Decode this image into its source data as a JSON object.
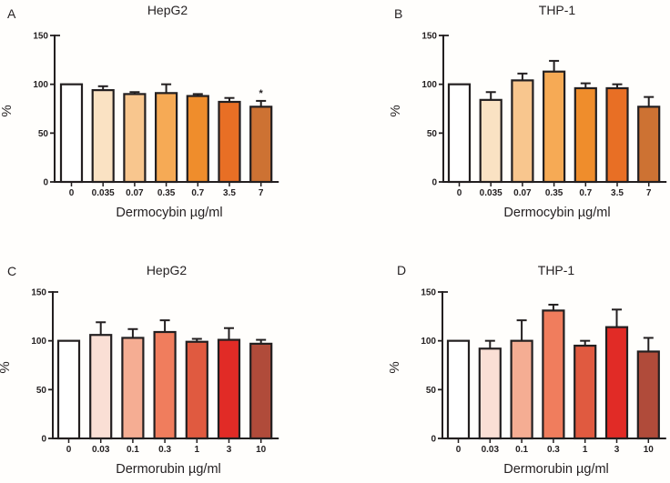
{
  "colors": {
    "axis": "#231F20",
    "text": "#231F20",
    "background": "#FFFFFF"
  },
  "chart_data": [
    {
      "panel": "A",
      "type": "bar",
      "title": "HepG2",
      "xlabel": "Dermocybin µg/ml",
      "ylabel": "%",
      "ylim": [
        0,
        150
      ],
      "yticks": [
        0,
        50,
        100,
        150
      ],
      "grid": false,
      "legend": null,
      "categories": [
        "0",
        "0.035",
        "0.07",
        "0.35",
        "0.7",
        "3.5",
        "7"
      ],
      "values": [
        100,
        94,
        90,
        91,
        88,
        82,
        77
      ],
      "errors": [
        0,
        4,
        2,
        9,
        2,
        4,
        6
      ],
      "significance": [
        "",
        "",
        "",
        "",
        "",
        "",
        "*"
      ],
      "bar_colors": [
        "#FFFFFF",
        "#FAE2C3",
        "#F8C68E",
        "#F6AA55",
        "#EF8D2C",
        "#E86F25",
        "#CD7233"
      ]
    },
    {
      "panel": "B",
      "type": "bar",
      "title": "THP-1",
      "xlabel": "Dermocybin µg/ml",
      "ylabel": "%",
      "ylim": [
        0,
        150
      ],
      "yticks": [
        0,
        50,
        100,
        150
      ],
      "grid": false,
      "legend": null,
      "categories": [
        "0",
        "0.035",
        "0.07",
        "0.35",
        "0.7",
        "3.5",
        "7"
      ],
      "values": [
        100,
        84,
        104,
        113,
        96,
        96,
        77
      ],
      "errors": [
        0,
        8,
        7,
        11,
        5,
        4,
        10
      ],
      "significance": [
        "",
        "",
        "",
        "",
        "",
        "",
        ""
      ],
      "bar_colors": [
        "#FFFFFF",
        "#FAE2C3",
        "#F8C68E",
        "#F6AA55",
        "#EF8D2C",
        "#E86F25",
        "#CD7233"
      ]
    },
    {
      "panel": "C",
      "type": "bar",
      "title": "HepG2",
      "xlabel": "Dermorubin µg/ml",
      "ylabel": "%",
      "ylim": [
        0,
        150
      ],
      "yticks": [
        0,
        50,
        100,
        150
      ],
      "grid": false,
      "legend": null,
      "categories": [
        "0",
        "0.03",
        "0.1",
        "0.3",
        "1",
        "3",
        "10"
      ],
      "values": [
        100,
        106,
        103,
        109,
        99,
        101,
        97
      ],
      "errors": [
        0,
        13,
        9,
        12,
        3,
        12,
        4
      ],
      "significance": [
        "",
        "",
        "",
        "",
        "",
        "",
        ""
      ],
      "bar_colors": [
        "#FFFFFF",
        "#FADFD5",
        "#F5AD93",
        "#F07D5D",
        "#E05A40",
        "#E12B26",
        "#B04B3A"
      ]
    },
    {
      "panel": "D",
      "type": "bar",
      "title": "THP-1",
      "xlabel": "Dermorubin µg/ml",
      "ylabel": "%",
      "ylim": [
        0,
        150
      ],
      "yticks": [
        0,
        50,
        100,
        150
      ],
      "grid": false,
      "legend": null,
      "categories": [
        "0",
        "0.03",
        "0.1",
        "0.3",
        "1",
        "3",
        "10"
      ],
      "values": [
        100,
        92,
        100,
        131,
        95,
        114,
        89
      ],
      "errors": [
        0,
        8,
        21,
        6,
        5,
        18,
        14
      ],
      "significance": [
        "",
        "",
        "",
        "",
        "",
        "",
        ""
      ],
      "bar_colors": [
        "#FFFFFF",
        "#FADFD5",
        "#F5AD93",
        "#F07D5D",
        "#E05A40",
        "#E12B26",
        "#B04B3A"
      ]
    }
  ]
}
